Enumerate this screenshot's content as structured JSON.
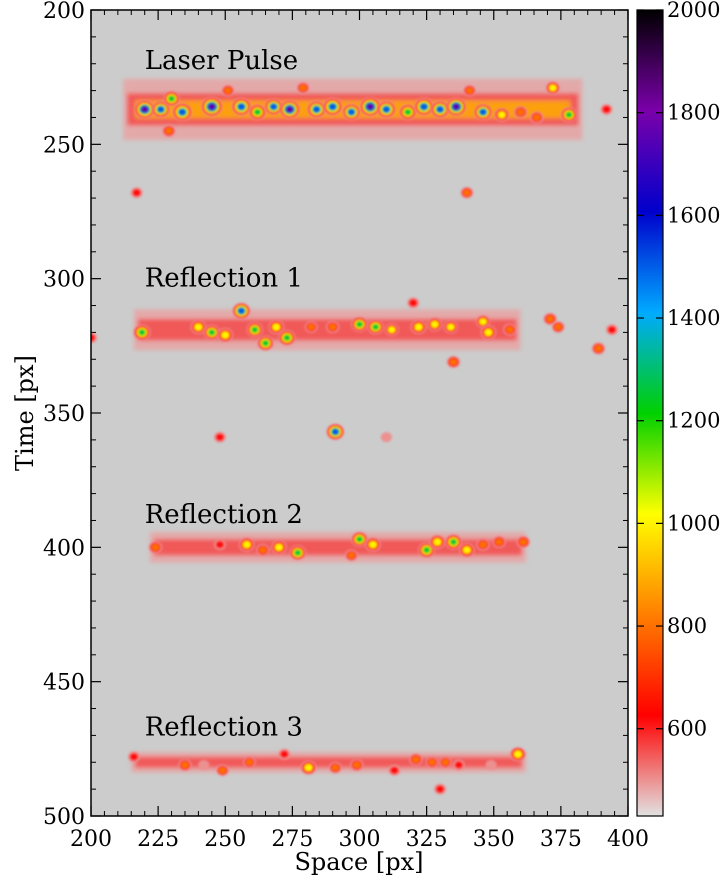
{
  "chart_data": {
    "type": "heatmap",
    "xlabel": "Space [px]",
    "ylabel": "Time [px]",
    "xlim": [
      200,
      400
    ],
    "ylim": [
      500,
      200
    ],
    "x_ticks": [
      200,
      225,
      250,
      275,
      300,
      325,
      350,
      375,
      400
    ],
    "y_ticks": [
      200,
      250,
      300,
      350,
      400,
      450,
      500
    ],
    "background_color": "#cccccc",
    "colorbar": {
      "min": 430,
      "max": 2000,
      "ticks": [
        600,
        800,
        1000,
        1200,
        1400,
        1600,
        1800,
        2000
      ],
      "colormap": [
        "#e2e2e2",
        "#ff0000",
        "#ff7f00",
        "#ffff00",
        "#00d000",
        "#00aaff",
        "#0000cc",
        "#7a00aa",
        "#000000"
      ]
    },
    "annotations": [
      {
        "text": "Laser Pulse",
        "x": 220,
        "y": 222
      },
      {
        "text": "Reflection 1",
        "x": 220,
        "y": 303
      },
      {
        "text": "Reflection 2",
        "x": 220,
        "y": 391
      },
      {
        "text": "Reflection 3",
        "x": 220,
        "y": 470
      }
    ],
    "bands": [
      {
        "name": "Laser Pulse",
        "x_range": [
          212,
          383
        ],
        "y_center": 237,
        "y_halfwidth": 6,
        "peak_value": 1950
      },
      {
        "name": "Reflection 1",
        "x_range": [
          216,
          360
        ],
        "y_center": 319,
        "y_halfwidth": 4,
        "peak_value": 1500
      },
      {
        "name": "Reflection 2",
        "x_range": [
          222,
          362
        ],
        "y_center": 400,
        "y_halfwidth": 3,
        "peak_value": 1350
      },
      {
        "name": "Reflection 3",
        "x_range": [
          215,
          362
        ],
        "y_center": 480,
        "y_halfwidth": 2,
        "peak_value": 1200
      }
    ],
    "spots": [
      {
        "x": 220,
        "y": 237,
        "value": 1800
      },
      {
        "x": 226,
        "y": 237,
        "value": 1500
      },
      {
        "x": 230,
        "y": 233,
        "value": 1300
      },
      {
        "x": 234,
        "y": 238,
        "value": 1700
      },
      {
        "x": 229,
        "y": 245,
        "value": 900
      },
      {
        "x": 245,
        "y": 236,
        "value": 1950
      },
      {
        "x": 251,
        "y": 230,
        "value": 800
      },
      {
        "x": 256,
        "y": 236,
        "value": 1700
      },
      {
        "x": 262,
        "y": 238,
        "value": 1400
      },
      {
        "x": 268,
        "y": 236,
        "value": 1500
      },
      {
        "x": 274,
        "y": 237,
        "value": 1800
      },
      {
        "x": 279,
        "y": 229,
        "value": 800
      },
      {
        "x": 284,
        "y": 237,
        "value": 1600
      },
      {
        "x": 290,
        "y": 236,
        "value": 1700
      },
      {
        "x": 297,
        "y": 238,
        "value": 1500
      },
      {
        "x": 304,
        "y": 236,
        "value": 1900
      },
      {
        "x": 310,
        "y": 237,
        "value": 1600
      },
      {
        "x": 318,
        "y": 238,
        "value": 1400
      },
      {
        "x": 324,
        "y": 236,
        "value": 1700
      },
      {
        "x": 330,
        "y": 237,
        "value": 1600
      },
      {
        "x": 336,
        "y": 236,
        "value": 1800
      },
      {
        "x": 341,
        "y": 230,
        "value": 800
      },
      {
        "x": 346,
        "y": 238,
        "value": 1500
      },
      {
        "x": 353,
        "y": 239,
        "value": 1100
      },
      {
        "x": 360,
        "y": 238,
        "value": 900
      },
      {
        "x": 366,
        "y": 240,
        "value": 900
      },
      {
        "x": 372,
        "y": 229,
        "value": 1000
      },
      {
        "x": 378,
        "y": 239,
        "value": 1300
      },
      {
        "x": 392,
        "y": 237,
        "value": 700
      },
      {
        "x": 217,
        "y": 268,
        "value": 700
      },
      {
        "x": 340,
        "y": 268,
        "value": 800
      },
      {
        "x": 219,
        "y": 320,
        "value": 1400
      },
      {
        "x": 240,
        "y": 318,
        "value": 1200
      },
      {
        "x": 245,
        "y": 320,
        "value": 1300
      },
      {
        "x": 250,
        "y": 321,
        "value": 1200
      },
      {
        "x": 256,
        "y": 312,
        "value": 1500
      },
      {
        "x": 261,
        "y": 319,
        "value": 1300
      },
      {
        "x": 265,
        "y": 324,
        "value": 1300
      },
      {
        "x": 269,
        "y": 318,
        "value": 1200
      },
      {
        "x": 273,
        "y": 322,
        "value": 1400
      },
      {
        "x": 282,
        "y": 318,
        "value": 800
      },
      {
        "x": 290,
        "y": 318,
        "value": 900
      },
      {
        "x": 300,
        "y": 317,
        "value": 1300
      },
      {
        "x": 306,
        "y": 318,
        "value": 1300
      },
      {
        "x": 312,
        "y": 319,
        "value": 1000
      },
      {
        "x": 322,
        "y": 318,
        "value": 1200
      },
      {
        "x": 328,
        "y": 317,
        "value": 1100
      },
      {
        "x": 334,
        "y": 318,
        "value": 1000
      },
      {
        "x": 335,
        "y": 331,
        "value": 900
      },
      {
        "x": 346,
        "y": 316,
        "value": 1000
      },
      {
        "x": 348,
        "y": 320,
        "value": 1200
      },
      {
        "x": 356,
        "y": 319,
        "value": 900
      },
      {
        "x": 371,
        "y": 315,
        "value": 900
      },
      {
        "x": 374,
        "y": 318,
        "value": 800
      },
      {
        "x": 389,
        "y": 326,
        "value": 900
      },
      {
        "x": 200,
        "y": 322,
        "value": 700
      },
      {
        "x": 320,
        "y": 309,
        "value": 700
      },
      {
        "x": 394,
        "y": 319,
        "value": 700
      },
      {
        "x": 291,
        "y": 357,
        "value": 1500
      },
      {
        "x": 248,
        "y": 359,
        "value": 700
      },
      {
        "x": 310,
        "y": 359,
        "value": 600
      },
      {
        "x": 224,
        "y": 400,
        "value": 900
      },
      {
        "x": 248,
        "y": 399,
        "value": 700
      },
      {
        "x": 258,
        "y": 399,
        "value": 1200
      },
      {
        "x": 264,
        "y": 401,
        "value": 900
      },
      {
        "x": 270,
        "y": 400,
        "value": 1200
      },
      {
        "x": 277,
        "y": 402,
        "value": 1300
      },
      {
        "x": 300,
        "y": 397,
        "value": 1300
      },
      {
        "x": 305,
        "y": 399,
        "value": 1200
      },
      {
        "x": 297,
        "y": 403,
        "value": 800
      },
      {
        "x": 325,
        "y": 401,
        "value": 1350
      },
      {
        "x": 329,
        "y": 398,
        "value": 1200
      },
      {
        "x": 335,
        "y": 398,
        "value": 1350
      },
      {
        "x": 340,
        "y": 401,
        "value": 1200
      },
      {
        "x": 346,
        "y": 399,
        "value": 900
      },
      {
        "x": 352,
        "y": 398,
        "value": 900
      },
      {
        "x": 361,
        "y": 398,
        "value": 900
      },
      {
        "x": 216,
        "y": 478,
        "value": 700
      },
      {
        "x": 235,
        "y": 481,
        "value": 900
      },
      {
        "x": 242,
        "y": 481,
        "value": 600
      },
      {
        "x": 249,
        "y": 483,
        "value": 800
      },
      {
        "x": 259,
        "y": 480,
        "value": 800
      },
      {
        "x": 272,
        "y": 477,
        "value": 700
      },
      {
        "x": 281,
        "y": 482,
        "value": 1200
      },
      {
        "x": 291,
        "y": 482,
        "value": 800
      },
      {
        "x": 299,
        "y": 481,
        "value": 900
      },
      {
        "x": 313,
        "y": 483,
        "value": 700
      },
      {
        "x": 321,
        "y": 479,
        "value": 900
      },
      {
        "x": 327,
        "y": 480,
        "value": 800
      },
      {
        "x": 332,
        "y": 480,
        "value": 800
      },
      {
        "x": 337,
        "y": 481,
        "value": 700
      },
      {
        "x": 330,
        "y": 490,
        "value": 700
      },
      {
        "x": 349,
        "y": 481,
        "value": 600
      },
      {
        "x": 359,
        "y": 477,
        "value": 1200
      }
    ]
  }
}
